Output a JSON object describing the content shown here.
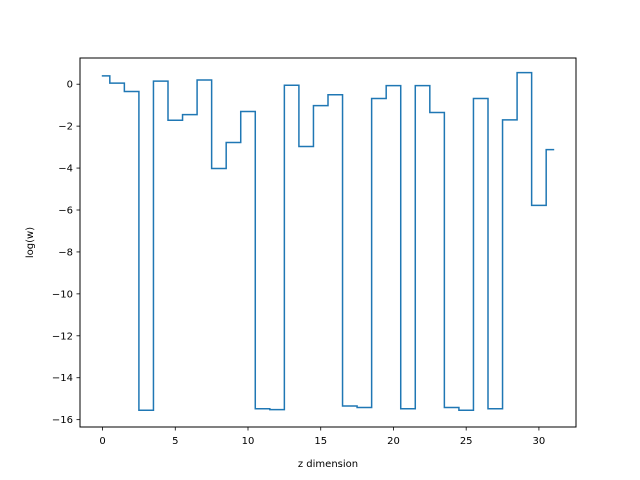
{
  "chart_data": {
    "type": "line",
    "drawstyle": "steps-mid",
    "xlabel": "z dimension",
    "ylabel": "log(w)",
    "xlim": [
      -1.55,
      32.55
    ],
    "ylim": [
      -16.35,
      1.25
    ],
    "xticks": [
      0,
      5,
      10,
      15,
      20,
      25,
      30
    ],
    "yticks": [
      0,
      -2,
      -4,
      -6,
      -8,
      -10,
      -12,
      -14,
      -16
    ],
    "xtick_labels": [
      "0",
      "5",
      "10",
      "15",
      "20",
      "25",
      "30"
    ],
    "ytick_labels": [
      "0",
      "−2",
      "−4",
      "−6",
      "−8",
      "−10",
      "−12",
      "−14",
      "−16"
    ],
    "grid": false,
    "series": [
      {
        "color": "#1f77b4",
        "x": [
          0,
          1,
          2,
          3,
          4,
          5,
          6,
          7,
          8,
          9,
          10,
          11,
          12,
          13,
          14,
          15,
          16,
          17,
          18,
          19,
          20,
          21,
          22,
          23,
          24,
          25,
          26,
          27,
          28,
          29,
          30,
          31
        ],
        "y": [
          0.4,
          0.05,
          -0.35,
          -15.55,
          0.15,
          -1.72,
          -1.45,
          0.2,
          -4.02,
          -2.78,
          -1.3,
          -15.48,
          -15.52,
          -0.05,
          -2.97,
          -1.02,
          -0.5,
          -15.35,
          -15.42,
          -0.68,
          -0.07,
          -15.48,
          -0.07,
          -1.35,
          -15.42,
          -15.55,
          -0.68,
          -15.48,
          -1.7,
          0.55,
          -5.78,
          -3.12
        ]
      }
    ]
  }
}
